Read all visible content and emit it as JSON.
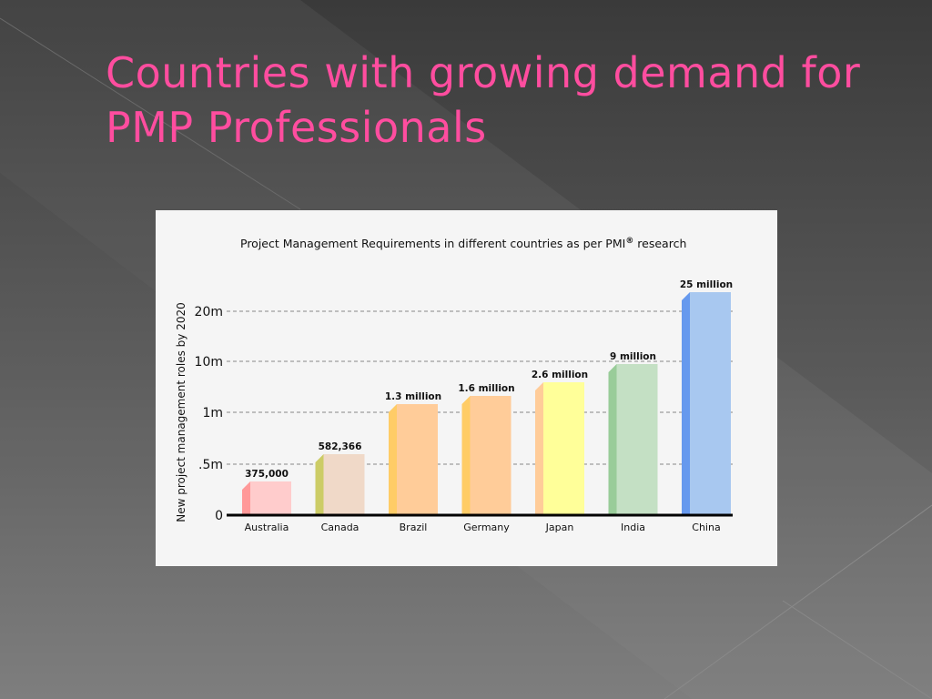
{
  "slide": {
    "title": "Countries with growing demand for PMP Professionals"
  },
  "chart_data": {
    "type": "bar",
    "title": "Project Management Requirements in different countries as per PMI",
    "title_superscript": "®",
    "title_suffix": " research",
    "ylabel": "New project management roles by 2020",
    "xlabel": "",
    "y_ticks": [
      {
        "label": "0",
        "value": 0
      },
      {
        "label": ".5m",
        "value": 500000
      },
      {
        "label": "1m",
        "value": 1000000
      },
      {
        "label": "10m",
        "value": 10000000
      },
      {
        "label": "20m",
        "value": 20000000
      }
    ],
    "scale": "categorical-step (0, .5m, 1m, 10m, 20m)",
    "grid": "dashed horizontal",
    "categories": [
      "Australia",
      "Canada",
      "Brazil",
      "Germany",
      "Japan",
      "India",
      "China"
    ],
    "values": [
      375000,
      582366,
      1300000,
      1600000,
      2600000,
      9000000,
      25000000
    ],
    "data_labels": [
      "375,000",
      "582,366",
      "1.3 million",
      "1.6 million",
      "2.6 million",
      "9 million",
      "25 million"
    ],
    "colors": [
      {
        "front": "#ffcccc",
        "side": "#ff9999"
      },
      {
        "front": "#f0d9c8",
        "side": "#cccc66"
      },
      {
        "front": "#ffcc99",
        "side": "#ffcc66"
      },
      {
        "front": "#ffcc99",
        "side": "#ffcc66"
      },
      {
        "front": "#ffff99",
        "side": "#ffcc99"
      },
      {
        "front": "#c4e0c4",
        "side": "#99cc99"
      },
      {
        "front": "#a8c8f0",
        "side": "#6699ee"
      }
    ]
  }
}
